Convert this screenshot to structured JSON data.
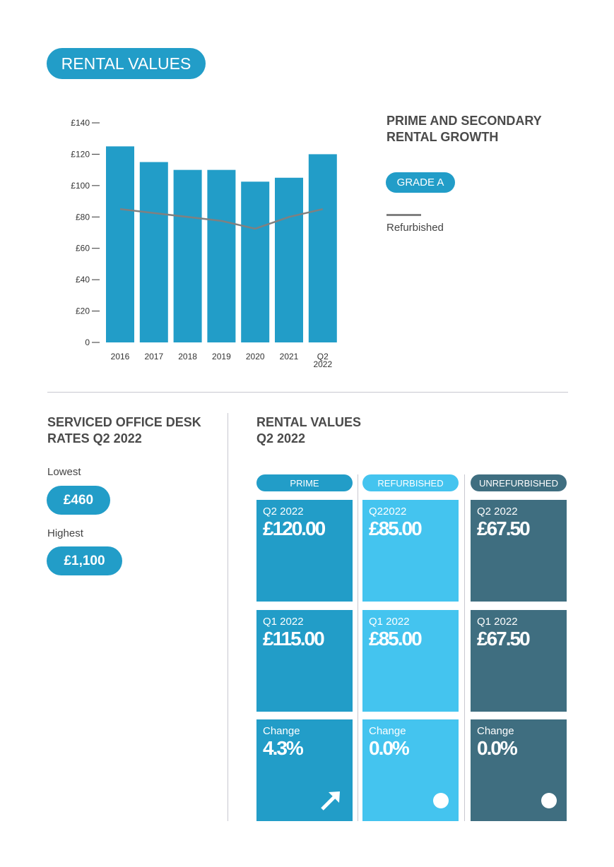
{
  "header": {
    "title": "RENTAL VALUES"
  },
  "chart_data": {
    "type": "bar",
    "title": "PRIME AND SECONDARY RENTAL GROWTH",
    "categories": [
      "2016",
      "2017",
      "2018",
      "2019",
      "2020",
      "2021",
      "Q2 2022"
    ],
    "series": [
      {
        "name": "GRADE A",
        "type": "bar",
        "values": [
          125,
          115,
          110,
          110,
          102.5,
          105,
          120
        ],
        "color": "#229dc8"
      },
      {
        "name": "Refurbished",
        "type": "line",
        "values": [
          85,
          82.5,
          80,
          77.5,
          72.5,
          80,
          85
        ],
        "color": "#808080"
      }
    ],
    "yticks": [
      "0",
      "£20",
      "£40",
      "£60",
      "£80",
      "£100",
      "£120",
      "£140"
    ],
    "ylim": [
      0,
      140
    ],
    "grid": false,
    "legend": "right"
  },
  "serviced": {
    "title_line1": "SERVICED OFFICE DESK",
    "title_line2": "RATES Q2 2022",
    "lowest_label": "Lowest",
    "lowest_value": "£460",
    "highest_label": "Highest",
    "highest_value": "£1,100"
  },
  "rental": {
    "title_line1": "RENTAL VALUES",
    "title_line2": "Q2 2022",
    "columns": [
      {
        "header": "PRIME",
        "color": "#229dc8",
        "q2_label": "Q2 2022",
        "q2_value": "£120.00",
        "q1_label": "Q1 2022",
        "q1_value": "£115.00",
        "change_label": "Change",
        "change_value": "4.3%",
        "icon": "arrow-up-right-icon"
      },
      {
        "header": "REFURBISHED",
        "color": "#44c4ef",
        "q2_label": "Q22022",
        "q2_value": "£85.00",
        "q1_label": "Q1 2022",
        "q1_value": "£85.00",
        "change_label": "Change",
        "change_value": "0.0%",
        "icon": "dot-icon"
      },
      {
        "header": "UNREFURBISHED",
        "color": "#3f6e80",
        "q2_label": "Q2 2022",
        "q2_value": "£67.50",
        "q1_label": "Q1 2022",
        "q1_value": "£67.50",
        "change_label": "Change",
        "change_value": "0.0%",
        "icon": "dot-icon"
      }
    ]
  }
}
